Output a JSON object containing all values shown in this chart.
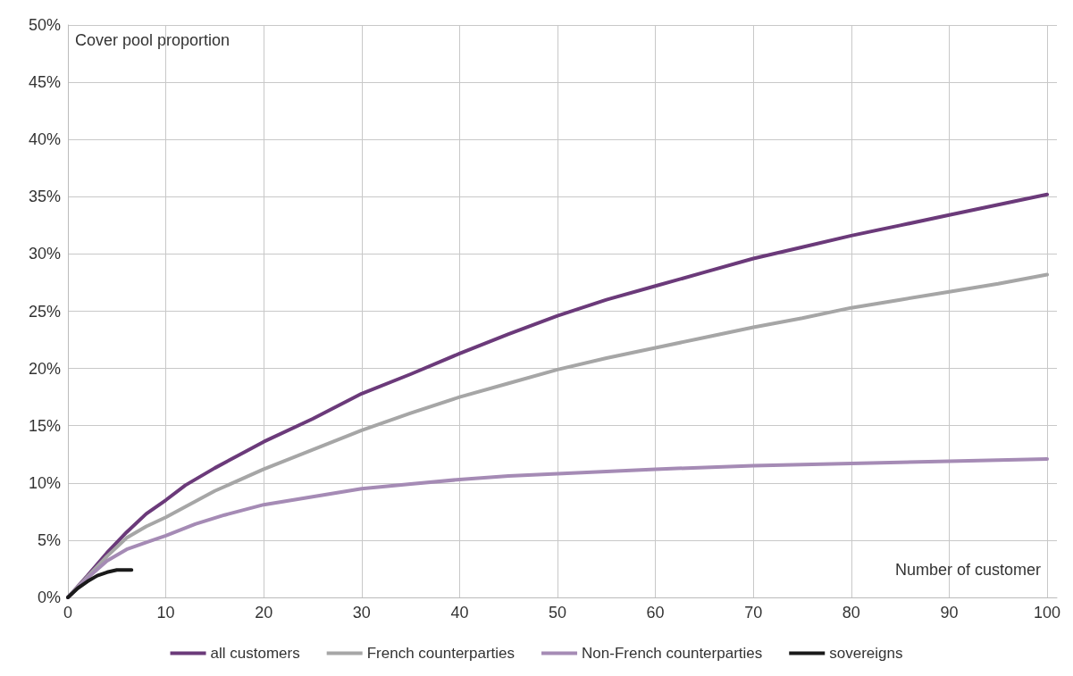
{
  "chart_data": {
    "type": "line",
    "xlabel": "Number of customer",
    "ylabel": "Cover pool proportion",
    "xlim": [
      0,
      101
    ],
    "xticks": [
      0,
      10,
      20,
      30,
      40,
      50,
      60,
      70,
      80,
      90,
      100
    ],
    "ylim": [
      0,
      50
    ],
    "yticks": [
      {
        "value": 0,
        "label": "0%"
      },
      {
        "value": 5,
        "label": "5%"
      },
      {
        "value": 10,
        "label": "10%"
      },
      {
        "value": 15,
        "label": "15%"
      },
      {
        "value": 20,
        "label": "20%"
      },
      {
        "value": 25,
        "label": "25%"
      },
      {
        "value": 30,
        "label": "30%"
      },
      {
        "value": 35,
        "label": "35%"
      },
      {
        "value": 40,
        "label": "40%"
      },
      {
        "value": 45,
        "label": "45%"
      },
      {
        "value": 50,
        "label": "50%"
      }
    ],
    "grid": true,
    "legend": "bottom",
    "marker": "none",
    "line_style": "solid",
    "series": [
      {
        "name": "all customers",
        "color": "#6b3a7a",
        "x": [
          0,
          2,
          4,
          6,
          8,
          10,
          12,
          15,
          20,
          25,
          30,
          35,
          40,
          45,
          50,
          55,
          60,
          65,
          70,
          75,
          80,
          85,
          90,
          95,
          100
        ],
        "values": [
          0,
          1.9,
          3.9,
          5.7,
          7.3,
          8.5,
          9.8,
          11.3,
          13.6,
          15.6,
          17.8,
          19.5,
          21.3,
          23,
          24.6,
          26,
          27.2,
          28.4,
          29.6,
          30.6,
          31.6,
          32.5,
          33.4,
          34.3,
          35.2
        ]
      },
      {
        "name": "French counterparties",
        "color": "#a6a6a6",
        "x": [
          0,
          2,
          4,
          6,
          8,
          10,
          15,
          20,
          25,
          30,
          35,
          40,
          45,
          50,
          55,
          60,
          65,
          70,
          75,
          80,
          85,
          90,
          95,
          100
        ],
        "values": [
          0,
          1.8,
          3.6,
          5.2,
          6.2,
          7,
          9.3,
          11.2,
          12.9,
          14.6,
          16.1,
          17.5,
          18.7,
          19.9,
          20.9,
          21.8,
          22.7,
          23.6,
          24.4,
          25.3,
          26,
          26.7,
          27.4,
          28.2
        ]
      },
      {
        "name": "Non-French counterparties",
        "color": "#a58bb5",
        "x": [
          0,
          2,
          4,
          6,
          8,
          10,
          13,
          16,
          20,
          25,
          30,
          35,
          40,
          45,
          50,
          60,
          70,
          80,
          90,
          100
        ],
        "values": [
          0,
          1.7,
          3.2,
          4.2,
          4.8,
          5.4,
          6.4,
          7.2,
          8.1,
          8.8,
          9.5,
          9.9,
          10.3,
          10.6,
          10.8,
          11.2,
          11.5,
          11.7,
          11.9,
          12.1
        ]
      },
      {
        "name": "sovereigns",
        "color": "#1a1a1a",
        "x": [
          0,
          1,
          2,
          3,
          4,
          5,
          6.5
        ],
        "values": [
          0,
          0.8,
          1.4,
          1.9,
          2.2,
          2.4,
          2.4
        ]
      }
    ]
  }
}
